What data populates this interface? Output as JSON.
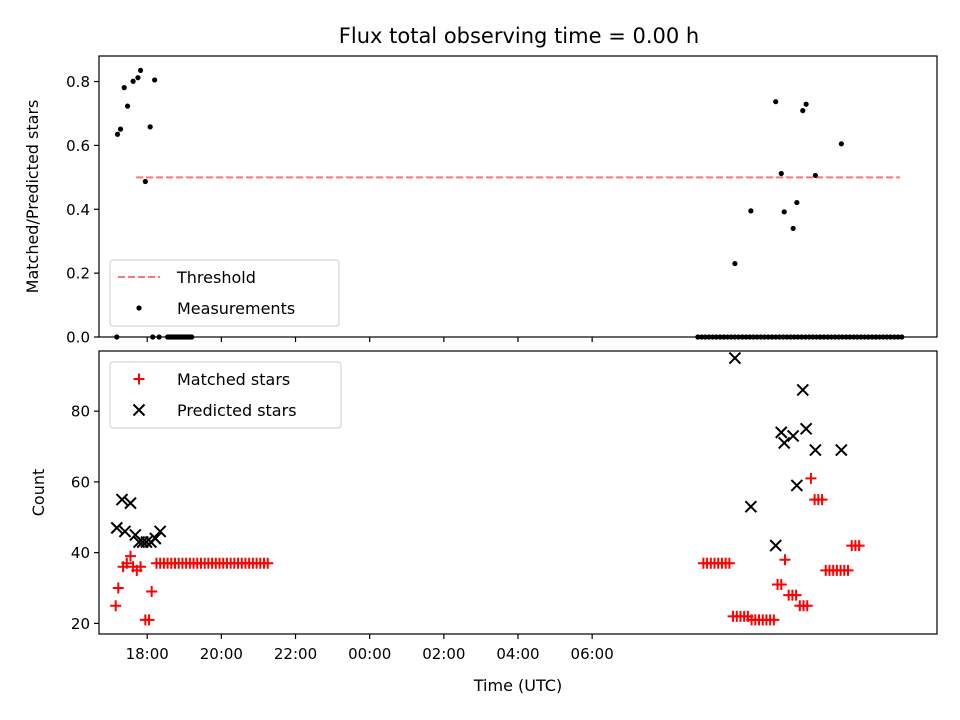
{
  "figure": {
    "title": "Flux total observing time = 0.00 h",
    "xlabel": "Time (UTC)"
  },
  "chart_data": [
    {
      "type": "scatter",
      "ylabel": "Matched/Predicted stars",
      "xlim_hours": [
        -1.3,
        21.3
      ],
      "ylim": [
        0,
        0.88
      ],
      "yticks": [
        0.0,
        0.2,
        0.4,
        0.6,
        0.8
      ],
      "ytick_labels": [
        "0.0",
        "0.2",
        "0.4",
        "0.6",
        "0.8"
      ],
      "legend_position": "lower-left",
      "series": [
        {
          "name": "Threshold",
          "kind": "line",
          "color": "#f87878",
          "x": [
            -0.3,
            20.3
          ],
          "y": [
            0.5,
            0.5
          ]
        },
        {
          "name": "Measurements",
          "kind": "dot",
          "color": "#000000",
          "x": [
            -0.8,
            -0.72,
            -0.62,
            -0.53,
            -0.38,
            -0.25,
            -0.18,
            -0.05,
            0.08,
            0.2,
            0.32,
            -0.82,
            0.15,
            0.55,
            0.6,
            0.65,
            0.7,
            0.75,
            0.8,
            0.85,
            0.9,
            0.95,
            1.0,
            1.05,
            1.1,
            1.15,
            1.2,
            14.85,
            14.95,
            15.05,
            15.15,
            15.25,
            15.35,
            15.45,
            15.55,
            15.65,
            15.75,
            15.85,
            15.95,
            16.05,
            16.15,
            16.25,
            16.35,
            16.45,
            16.55,
            16.65,
            16.75,
            16.85,
            16.95,
            17.05,
            17.15,
            17.25,
            17.35,
            17.45,
            17.55,
            17.65,
            17.75,
            17.85,
            17.95,
            18.05,
            18.15,
            18.25,
            18.35,
            18.45,
            18.55,
            18.65,
            18.75,
            18.85,
            18.95,
            19.05,
            19.15,
            19.25,
            19.35,
            19.45,
            19.55,
            19.65,
            19.75,
            19.85,
            19.95,
            20.05,
            20.15,
            20.25,
            20.35,
            15.85,
            16.28,
            16.95,
            17.1,
            17.18,
            17.42,
            17.52,
            17.68,
            17.77,
            18.02,
            18.72
          ],
          "y": [
            0.635,
            0.651,
            0.781,
            0.723,
            0.801,
            0.812,
            0.835,
            0.487,
            0.658,
            0.805,
            0.0,
            0.0,
            0.0,
            0.0,
            0.0,
            0.0,
            0.0,
            0.0,
            0.0,
            0.0,
            0.0,
            0.0,
            0.0,
            0.0,
            0.0,
            0.0,
            0.0,
            0.0,
            0.0,
            0.0,
            0.0,
            0.0,
            0.0,
            0.0,
            0.0,
            0.0,
            0.0,
            0.0,
            0.0,
            0.0,
            0.0,
            0.0,
            0.0,
            0.0,
            0.0,
            0.0,
            0.0,
            0.0,
            0.0,
            0.0,
            0.0,
            0.0,
            0.0,
            0.0,
            0.0,
            0.0,
            0.0,
            0.0,
            0.0,
            0.0,
            0.0,
            0.0,
            0.0,
            0.0,
            0.0,
            0.0,
            0.0,
            0.0,
            0.0,
            0.0,
            0.0,
            0.0,
            0.0,
            0.0,
            0.0,
            0.0,
            0.0,
            0.0,
            0.0,
            0.0,
            0.0,
            0.0,
            0.0,
            0.23,
            0.395,
            0.737,
            0.512,
            0.392,
            0.34,
            0.421,
            0.709,
            0.729,
            0.506,
            0.605
          ]
        }
      ]
    },
    {
      "type": "scatter",
      "ylabel": "Count",
      "xlim_hours": [
        -1.3,
        21.3
      ],
      "ylim": [
        17,
        97
      ],
      "yticks": [
        20,
        40,
        60,
        80
      ],
      "ytick_labels": [
        "20",
        "40",
        "60",
        "80"
      ],
      "xticks_hours": [
        0,
        2,
        4,
        6,
        8,
        10,
        12
      ],
      "xtick_labels": [
        "18:00",
        "20:00",
        "22:00",
        "00:00",
        "02:00",
        "04:00",
        "06:00"
      ],
      "legend_position": "upper-left",
      "series": [
        {
          "name": "Matched stars",
          "kind": "plus",
          "color": "#ff0000",
          "x": [
            -0.85,
            -0.78,
            -0.65,
            -0.55,
            -0.45,
            -0.38,
            -0.28,
            -0.18,
            -0.05,
            0.05,
            0.12,
            0.25,
            0.35,
            0.45,
            0.55,
            0.65,
            0.75,
            0.85,
            0.95,
            1.05,
            1.15,
            1.25,
            1.35,
            1.45,
            1.55,
            1.65,
            1.75,
            1.85,
            1.95,
            2.05,
            2.15,
            2.25,
            2.35,
            2.45,
            2.55,
            2.65,
            2.75,
            2.85,
            2.95,
            3.05,
            3.15,
            3.25,
            15.0,
            15.1,
            15.2,
            15.3,
            15.4,
            15.5,
            15.6,
            15.7,
            15.8,
            15.9,
            16.0,
            16.1,
            16.2,
            16.3,
            16.4,
            16.5,
            16.6,
            16.7,
            16.8,
            16.9,
            17.0,
            17.1,
            17.2,
            17.3,
            17.4,
            17.5,
            17.6,
            17.7,
            17.8,
            17.9,
            18.0,
            18.1,
            18.2,
            18.3,
            18.4,
            18.5,
            18.6,
            18.7,
            18.8,
            18.9,
            19.0,
            19.1,
            19.2
          ],
          "y": [
            25,
            30,
            36,
            37,
            39,
            36,
            35,
            36,
            21,
            21,
            29,
            37,
            37,
            37,
            37,
            37,
            37,
            37,
            37,
            37,
            37,
            37,
            37,
            37,
            37,
            37,
            37,
            37,
            37,
            37,
            37,
            37,
            37,
            37,
            37,
            37,
            37,
            37,
            37,
            37,
            37,
            37,
            37,
            37,
            37,
            37,
            37,
            37,
            37,
            37,
            22,
            22,
            22,
            22,
            22,
            21,
            21,
            21,
            21,
            21,
            21,
            21,
            31,
            31,
            38,
            28,
            28,
            28,
            25,
            25,
            25,
            61,
            55,
            55,
            55,
            35,
            35,
            35,
            35,
            35,
            35,
            35,
            42,
            42,
            42
          ]
        },
        {
          "name": "Predicted stars",
          "kind": "x",
          "color": "#000000",
          "x": [
            -0.82,
            -0.68,
            -0.6,
            -0.45,
            -0.32,
            -0.22,
            -0.12,
            -0.02,
            0.1,
            0.22,
            0.35,
            15.85,
            16.28,
            16.95,
            17.1,
            17.18,
            17.42,
            17.52,
            17.68,
            17.77,
            18.02,
            18.72
          ],
          "y": [
            47,
            55,
            46,
            54,
            45,
            43,
            43,
            43,
            43,
            44,
            46,
            95,
            53,
            42,
            74,
            71,
            73,
            59,
            86,
            75,
            69,
            69
          ]
        }
      ]
    }
  ]
}
